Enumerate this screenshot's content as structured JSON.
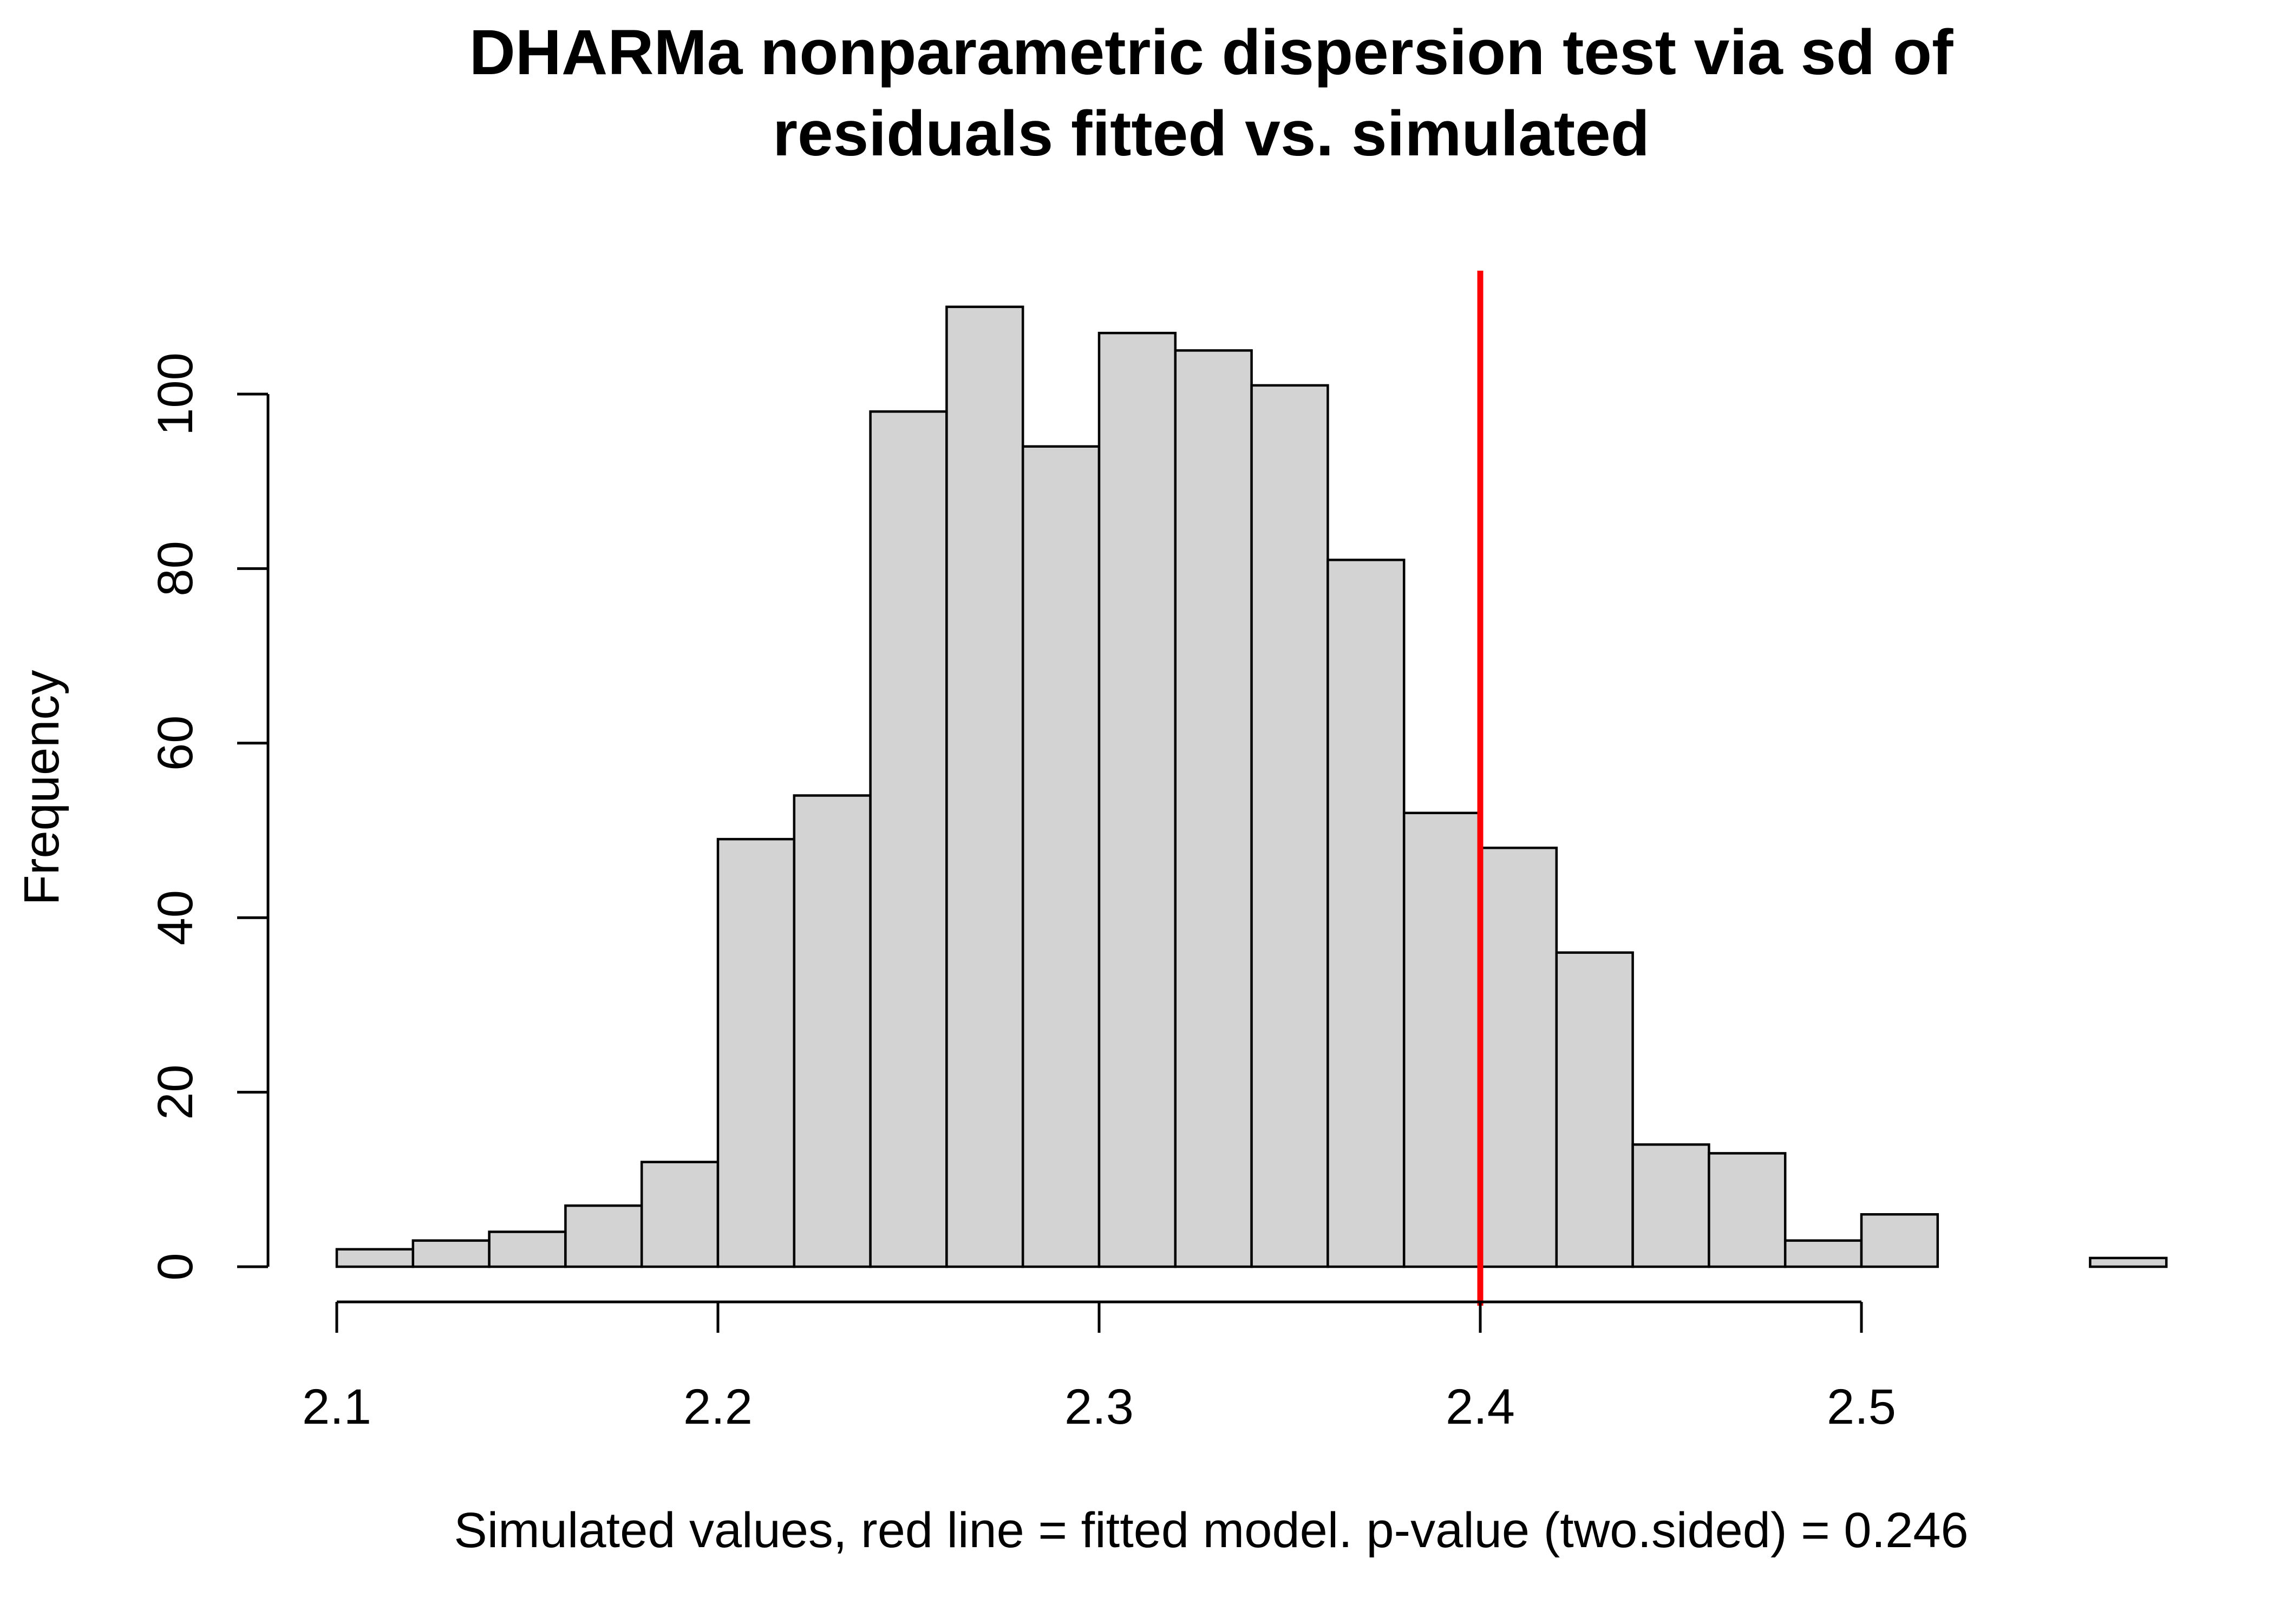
{
  "chart_data": {
    "type": "bar",
    "subtype": "histogram",
    "title_lines": [
      "DHARMa nonparametric dispersion test via sd of",
      "residuals fitted vs. simulated"
    ],
    "xlabel": "Simulated values, red line = fitted model. p-value (two.sided) = 0.246",
    "ylabel": "Frequency",
    "bin_width": 0.02,
    "bins": [
      {
        "start": 2.1,
        "end": 2.12,
        "count": 2
      },
      {
        "start": 2.12,
        "end": 2.14,
        "count": 3
      },
      {
        "start": 2.14,
        "end": 2.16,
        "count": 4
      },
      {
        "start": 2.16,
        "end": 2.18,
        "count": 7
      },
      {
        "start": 2.18,
        "end": 2.2,
        "count": 12
      },
      {
        "start": 2.2,
        "end": 2.22,
        "count": 49
      },
      {
        "start": 2.22,
        "end": 2.24,
        "count": 54
      },
      {
        "start": 2.24,
        "end": 2.26,
        "count": 98
      },
      {
        "start": 2.26,
        "end": 2.28,
        "count": 110
      },
      {
        "start": 2.28,
        "end": 2.3,
        "count": 94
      },
      {
        "start": 2.3,
        "end": 2.32,
        "count": 107
      },
      {
        "start": 2.32,
        "end": 2.34,
        "count": 105
      },
      {
        "start": 2.34,
        "end": 2.36,
        "count": 101
      },
      {
        "start": 2.36,
        "end": 2.38,
        "count": 81
      },
      {
        "start": 2.38,
        "end": 2.4,
        "count": 52
      },
      {
        "start": 2.4,
        "end": 2.42,
        "count": 48
      },
      {
        "start": 2.42,
        "end": 2.44,
        "count": 36
      },
      {
        "start": 2.44,
        "end": 2.46,
        "count": 14
      },
      {
        "start": 2.46,
        "end": 2.48,
        "count": 13
      },
      {
        "start": 2.48,
        "end": 2.5,
        "count": 3
      },
      {
        "start": 2.5,
        "end": 2.52,
        "count": 6
      },
      {
        "start": 2.52,
        "end": 2.54,
        "count": 0
      },
      {
        "start": 2.54,
        "end": 2.56,
        "count": 0
      },
      {
        "start": 2.56,
        "end": 2.58,
        "count": 1
      }
    ],
    "fitted_value": 2.4,
    "x_ticks": [
      "2.1",
      "2.2",
      "2.3",
      "2.4",
      "2.5"
    ],
    "y_ticks": [
      "0",
      "20",
      "40",
      "60",
      "80",
      "100"
    ],
    "xlim": [
      2.1,
      2.58
    ],
    "ylim": [
      0,
      114
    ],
    "grid": false,
    "legend": "none",
    "colors": {
      "bar_fill": "#d3d3d3",
      "bar_stroke": "#000000",
      "fitted_line": "#ff0000",
      "axis": "#000000",
      "background": "#ffffff"
    }
  }
}
